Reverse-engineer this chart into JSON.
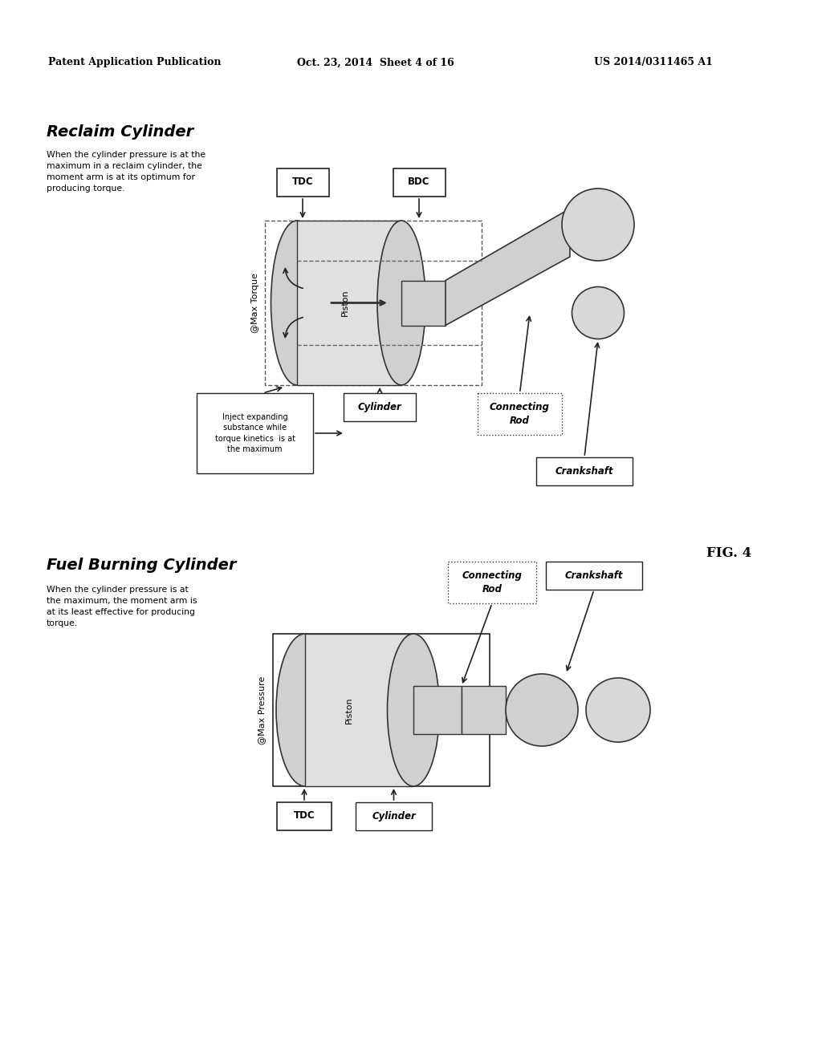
{
  "header_left": "Patent Application Publication",
  "header_mid": "Oct. 23, 2014  Sheet 4 of 16",
  "header_right": "US 2014/0311465 A1",
  "fig_label": "FIG. 4",
  "section1_title": "Reclaim Cylinder",
  "section1_desc": "When the cylinder pressure is at the\nmaximum in a reclaim cylinder, the\nmoment arm is at its optimum for\nproducing torque.",
  "section1_label_at_max": "@Max Torque",
  "section1_label_piston": "Piston",
  "section1_label_cylinder": "Cylinder",
  "section1_label_tdc": "TDC",
  "section1_label_bdc": "BDC",
  "section1_label_conn_rod": "Connecting\nRod",
  "section1_label_crankshaft": "Crankshaft",
  "section1_inject_box": "Inject expanding\nsubstance while\ntorque kinetics  is at\nthe maximum",
  "section2_title": "Fuel Burning Cylinder",
  "section2_desc": "When the cylinder pressure is at\nthe maximum, the moment arm is\nat its least effective for producing\ntorque.",
  "section2_label_at_max": "@Max Pressure",
  "section2_label_piston": "Piston",
  "section2_label_cylinder": "Cylinder",
  "section2_label_tdc": "TDC",
  "section2_label_conn_rod": "Connecting\nRod",
  "section2_label_crankshaft": "Crankshaft",
  "bg_color": "#ffffff",
  "text_color": "#000000"
}
